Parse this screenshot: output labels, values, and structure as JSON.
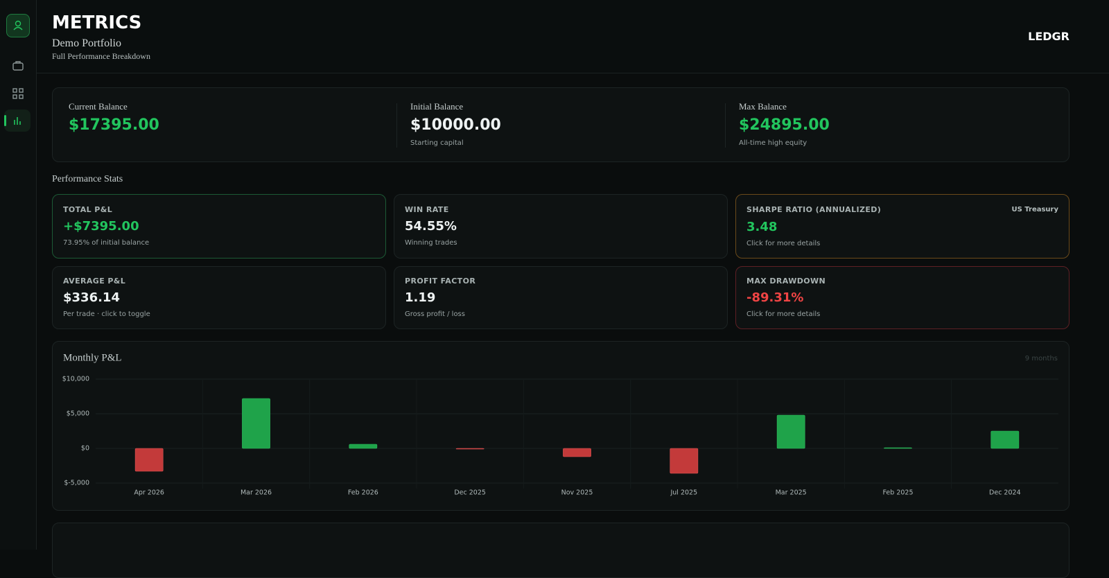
{
  "header": {
    "title": "METRICS",
    "subtitle": "Demo Portfolio",
    "description": "Full Performance Breakdown",
    "brand": "LEDGR"
  },
  "balances": [
    {
      "label": "Current Balance",
      "value": "$17395.00"
    },
    {
      "label": "Initial Balance",
      "value": "$10000.00",
      "note": "Starting capital"
    },
    {
      "label": "Max Balance",
      "value": "$24895.00",
      "note": "All-time high equity"
    }
  ],
  "section_title": "Performance Stats",
  "stats": [
    {
      "label": "TOTAL P&L",
      "value": "+$7395.00",
      "note": "73.95% of initial balance"
    },
    {
      "label": "WIN RATE",
      "value": "54.55%",
      "note": "Winning trades"
    },
    {
      "label": "SHARPE RATIO (ANNUALIZED)",
      "badge": "US Treasury",
      "value": "3.48",
      "note": "Click for more details"
    },
    {
      "label": "AVERAGE P&L",
      "value": "$336.14",
      "note": "Per trade · click to toggle"
    },
    {
      "label": "PROFIT FACTOR",
      "value": "1.19",
      "note": "Gross profit / loss"
    },
    {
      "label": "MAX DRAWDOWN",
      "value": "-89.31%",
      "note": "Click for more details"
    }
  ],
  "chart_data": {
    "type": "bar",
    "title": "Monthly P&L",
    "subtitle": "9 months",
    "categories": [
      "Apr 2026",
      "Mar 2026",
      "Feb 2026",
      "Dec 2025",
      "Nov 2025",
      "Jul 2025",
      "Mar 2025",
      "Feb 2025",
      "Dec 2024"
    ],
    "values": [
      -3300,
      7200,
      600,
      -100,
      -1200,
      -3600,
      4800,
      100,
      2500
    ],
    "positive_color": "#1fa34a",
    "negative_color": "#c33a3a",
    "ylim": [
      -5000,
      10000
    ],
    "yticks": [
      {
        "value": -5000,
        "label": "$-5,000"
      },
      {
        "value": 0,
        "label": "$0"
      },
      {
        "value": 5000,
        "label": "$5,000"
      },
      {
        "value": 10000,
        "label": "$10,000"
      }
    ],
    "grid": true
  }
}
